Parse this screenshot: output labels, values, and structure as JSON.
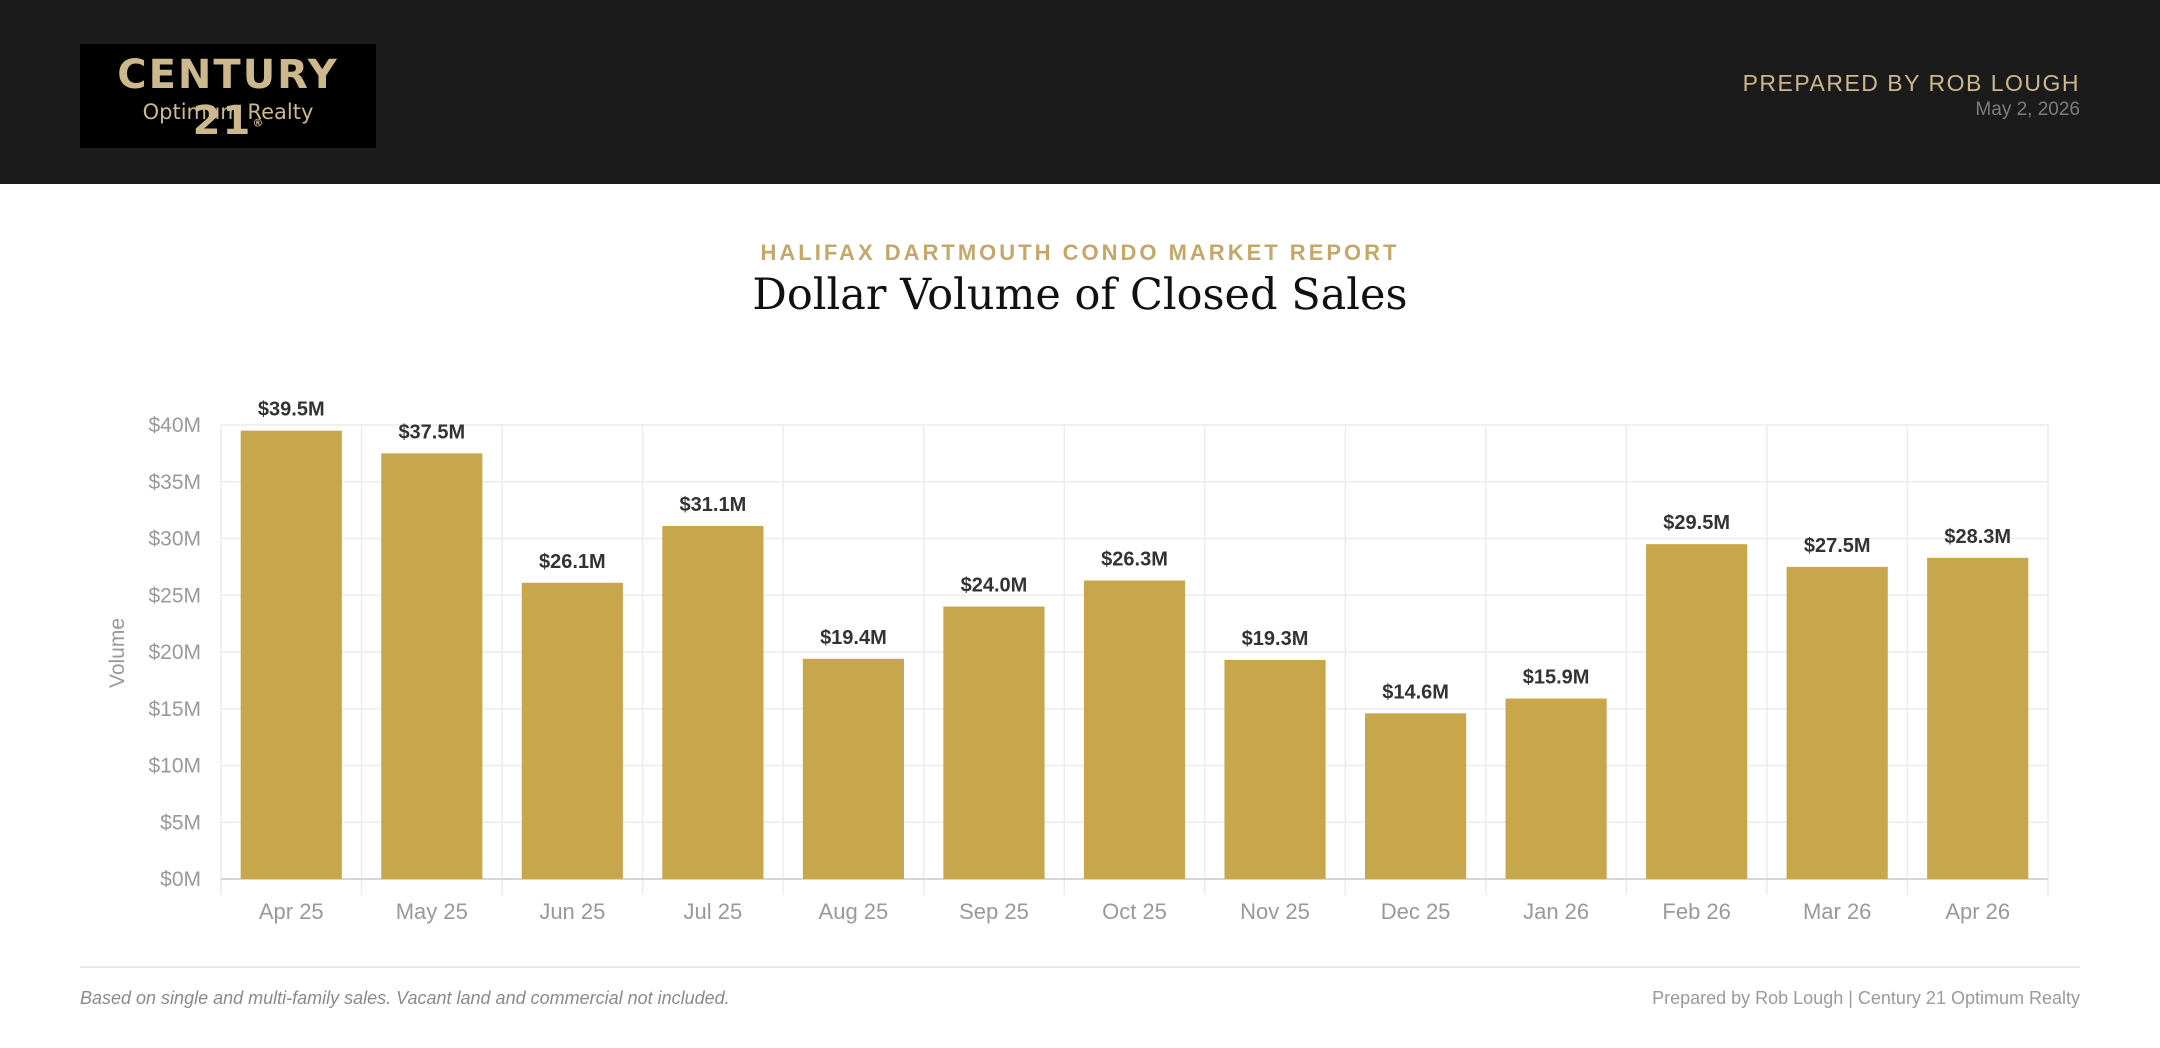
{
  "header": {
    "logo_main": "CENTURY 21",
    "logo_reg": "®",
    "logo_sub": "Optimum Realty",
    "prepared_by": "PREPARED BY ROB LOUGH",
    "date": "May 2, 2026"
  },
  "report": {
    "eyebrow": "HALIFAX DARTMOUTH CONDO MARKET REPORT"
  },
  "colors": {
    "bar": "#c8a74c",
    "header_bg": "#1b1b1b",
    "accent_gold": "#cdb78d"
  },
  "chart_data": {
    "type": "bar",
    "title": "Dollar Volume of Closed Sales",
    "ylabel": "Volume",
    "xlabel": "",
    "ylim": [
      0,
      40
    ],
    "y_ticks": [
      0,
      5,
      10,
      15,
      20,
      25,
      30,
      35,
      40
    ],
    "y_tick_labels": [
      "$0M",
      "$5M",
      "$10M",
      "$15M",
      "$20M",
      "$25M",
      "$30M",
      "$35M",
      "$40M"
    ],
    "grid": true,
    "categories": [
      "Apr 25",
      "May 25",
      "Jun 25",
      "Jul 25",
      "Aug 25",
      "Sep 25",
      "Oct 25",
      "Nov 25",
      "Dec 25",
      "Jan 26",
      "Feb 26",
      "Mar 26",
      "Apr 26"
    ],
    "values": [
      39.5,
      37.5,
      26.1,
      31.1,
      19.4,
      24.0,
      26.3,
      19.3,
      14.6,
      15.9,
      29.5,
      27.5,
      28.3
    ],
    "value_labels": [
      "$39.5M",
      "$37.5M",
      "$26.1M",
      "$31.1M",
      "$19.4M",
      "$24.0M",
      "$26.3M",
      "$19.3M",
      "$14.6M",
      "$15.9M",
      "$29.5M",
      "$27.5M",
      "$28.3M"
    ]
  },
  "footer": {
    "note": "Based on single and multi-family sales. Vacant land and commercial not included.",
    "credit": "Prepared by Rob Lough | Century 21 Optimum Realty"
  }
}
